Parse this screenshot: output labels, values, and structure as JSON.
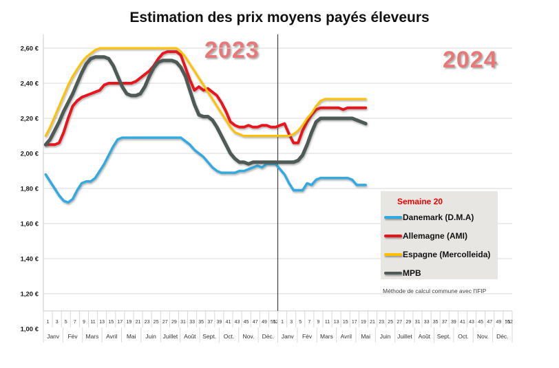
{
  "title": "Estimation des prix moyens payés éleveurs",
  "year_labels": [
    "2023",
    "2024"
  ],
  "y_axis": {
    "labels": [
      "2,60 €",
      "2,40 €",
      "2,20 €",
      "2,00 €",
      "1,80 €",
      "1,60 €",
      "1,40 €",
      "1,20 €",
      "1,00 €"
    ],
    "values": [
      2.6,
      2.4,
      2.2,
      2.0,
      1.8,
      1.6,
      1.4,
      1.2,
      1.0
    ]
  },
  "x_axis": {
    "week_labels": [
      "1",
      "3",
      "5",
      "7",
      "9",
      "11",
      "13",
      "15",
      "17",
      "19",
      "21",
      "23",
      "25",
      "27",
      "29",
      "31",
      "33",
      "35",
      "37",
      "39",
      "41",
      "43",
      "45",
      "47",
      "49",
      "51",
      "52"
    ],
    "month_labels": [
      "Janv",
      "Fév",
      "Mars",
      "Avril",
      "Mai",
      "Juin",
      "Juillet",
      "Août",
      "Sept.",
      "Oct.",
      "Nov.",
      "Déc."
    ]
  },
  "legend": {
    "header": "Semaine 20",
    "items": [
      {
        "label": "Danemark (D.M.A)",
        "color": "#31a9e0"
      },
      {
        "label": "Allemagne (AMI)",
        "color": "#e8141c"
      },
      {
        "label": "Espagne (Mercolleida)",
        "color": "#ffc000"
      },
      {
        "label": "MPB",
        "color": "#4d5a57"
      }
    ]
  },
  "footnote": "Méthode de calcul commune avec l'IFIP",
  "chart_data": {
    "type": "line",
    "title": "Estimation des prix moyens payés éleveurs",
    "x_unit": "semaine",
    "years": [
      "2023",
      "2024"
    ],
    "ylim": [
      1.0,
      2.6
    ],
    "y_tick_step": 0.2,
    "grid": "horizontal",
    "legend_position": "bottom-right",
    "last_week_2024": 20,
    "series": [
      {
        "name": "Danemark (D.M.A)",
        "color": "#31a9e0",
        "width": 3.5,
        "values_2023": [
          1.88,
          1.84,
          1.8,
          1.76,
          1.73,
          1.72,
          1.74,
          1.79,
          1.83,
          1.84,
          1.84,
          1.86,
          1.9,
          1.94,
          1.99,
          2.04,
          2.08,
          2.09,
          2.09,
          2.09,
          2.09,
          2.09,
          2.09,
          2.09,
          2.09,
          2.09,
          2.09,
          2.09,
          2.09,
          2.09,
          2.09,
          2.07,
          2.05,
          2.02,
          2.0,
          1.98,
          1.95,
          1.92,
          1.9,
          1.89,
          1.89,
          1.89,
          1.89,
          1.9,
          1.9,
          1.91,
          1.92,
          1.93,
          1.92,
          1.94,
          1.94,
          1.94
        ],
        "values_2024": [
          1.91,
          1.88,
          1.83,
          1.79,
          1.79,
          1.79,
          1.83,
          1.82,
          1.85,
          1.86,
          1.86,
          1.86,
          1.86,
          1.86,
          1.86,
          1.86,
          1.85,
          1.82,
          1.82,
          1.82
        ]
      },
      {
        "name": "Allemagne (AMI)",
        "color": "#e8141c",
        "width": 4,
        "values_2023": [
          2.05,
          2.05,
          2.05,
          2.06,
          2.12,
          2.2,
          2.27,
          2.3,
          2.32,
          2.33,
          2.34,
          2.35,
          2.36,
          2.39,
          2.4,
          2.4,
          2.4,
          2.4,
          2.4,
          2.4,
          2.41,
          2.43,
          2.45,
          2.47,
          2.5,
          2.54,
          2.57,
          2.58,
          2.58,
          2.58,
          2.56,
          2.49,
          2.42,
          2.36,
          2.38,
          2.36,
          2.37,
          2.35,
          2.33,
          2.29,
          2.24,
          2.18,
          2.16,
          2.15,
          2.15,
          2.16,
          2.15,
          2.15,
          2.16,
          2.16,
          2.15,
          2.15
        ],
        "values_2024": [
          2.16,
          2.17,
          2.11,
          2.06,
          2.06,
          2.13,
          2.18,
          2.22,
          2.25,
          2.26,
          2.26,
          2.26,
          2.26,
          2.26,
          2.25,
          2.26,
          2.26,
          2.26,
          2.26,
          2.26
        ]
      },
      {
        "name": "Espagne (Mercolleida)",
        "color": "#ffc000",
        "width": 3,
        "values_2023": [
          2.1,
          2.15,
          2.21,
          2.27,
          2.33,
          2.39,
          2.44,
          2.48,
          2.52,
          2.55,
          2.57,
          2.59,
          2.6,
          2.6,
          2.6,
          2.6,
          2.6,
          2.6,
          2.6,
          2.6,
          2.6,
          2.6,
          2.6,
          2.6,
          2.6,
          2.6,
          2.6,
          2.6,
          2.6,
          2.6,
          2.58,
          2.55,
          2.51,
          2.47,
          2.43,
          2.39,
          2.35,
          2.31,
          2.27,
          2.23,
          2.19,
          2.15,
          2.12,
          2.11,
          2.1,
          2.1,
          2.1,
          2.1,
          2.1,
          2.1,
          2.1,
          2.1
        ],
        "values_2024": [
          2.1,
          2.1,
          2.1,
          2.11,
          2.13,
          2.16,
          2.2,
          2.23,
          2.27,
          2.3,
          2.31,
          2.31,
          2.31,
          2.31,
          2.31,
          2.31,
          2.31,
          2.31,
          2.31,
          2.31
        ]
      },
      {
        "name": "MPB",
        "color": "#4d5a57",
        "width": 5,
        "values_2023": [
          2.05,
          2.08,
          2.13,
          2.18,
          2.24,
          2.29,
          2.34,
          2.4,
          2.46,
          2.51,
          2.54,
          2.55,
          2.55,
          2.55,
          2.54,
          2.5,
          2.44,
          2.38,
          2.34,
          2.33,
          2.33,
          2.34,
          2.38,
          2.44,
          2.49,
          2.52,
          2.53,
          2.53,
          2.53,
          2.52,
          2.49,
          2.44,
          2.36,
          2.28,
          2.22,
          2.21,
          2.21,
          2.19,
          2.15,
          2.1,
          2.05,
          2.0,
          1.97,
          1.95,
          1.95,
          1.94,
          1.95,
          1.95,
          1.95,
          1.95,
          1.95,
          1.95
        ],
        "values_2024": [
          1.95,
          1.95,
          1.95,
          1.95,
          1.96,
          1.99,
          2.05,
          2.12,
          2.18,
          2.2,
          2.2,
          2.2,
          2.2,
          2.2,
          2.2,
          2.2,
          2.2,
          2.19,
          2.18,
          2.17
        ]
      }
    ]
  }
}
